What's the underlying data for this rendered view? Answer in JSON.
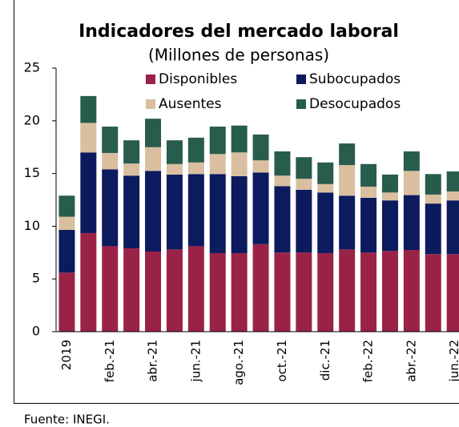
{
  "chart_data": {
    "type": "stacked_bar",
    "title": "Indicadores del mercado laboral",
    "subtitle": "(Millones de personas)",
    "source": "Fuente: INEGI.",
    "categories": [
      "2019",
      null,
      "feb.-21",
      null,
      "abr.-21",
      null,
      "jun.-21",
      null,
      "ago.-21",
      null,
      "oct.-21",
      null,
      "dic.-21",
      null,
      "feb.-22",
      null,
      "abr.-22",
      null,
      "jun.-22"
    ],
    "series": [
      {
        "name": "Disponibles",
        "color": "#9b2247",
        "values": [
          5.6,
          9.35,
          8.1,
          7.9,
          7.6,
          7.8,
          8.1,
          7.45,
          7.45,
          8.3,
          7.5,
          7.5,
          7.45,
          7.8,
          7.5,
          7.65,
          7.75,
          7.35,
          7.35
        ]
      },
      {
        "name": "Subocupados",
        "color": "#0c1a5e",
        "values": [
          4.05,
          7.65,
          7.3,
          6.9,
          7.65,
          7.1,
          6.85,
          7.5,
          7.3,
          6.8,
          6.3,
          5.95,
          5.75,
          5.1,
          5.2,
          4.8,
          5.2,
          4.8,
          5.1
        ]
      },
      {
        "name": "Ausentes",
        "color": "#d9bf9f",
        "values": [
          1.25,
          2.8,
          1.55,
          1.15,
          2.25,
          1.0,
          1.1,
          1.9,
          2.25,
          1.15,
          1.0,
          1.05,
          0.8,
          2.9,
          1.05,
          0.75,
          2.3,
          0.85,
          0.85
        ]
      },
      {
        "name": "Desocupados",
        "color": "#285c4d",
        "values": [
          2.0,
          2.55,
          2.5,
          2.2,
          2.7,
          2.25,
          2.35,
          2.6,
          2.55,
          2.45,
          2.3,
          2.05,
          2.05,
          2.05,
          2.15,
          1.7,
          1.85,
          1.95,
          1.9
        ]
      }
    ],
    "ylim": [
      0,
      25
    ],
    "yticks": [
      0,
      5,
      10,
      15,
      20,
      25
    ]
  }
}
